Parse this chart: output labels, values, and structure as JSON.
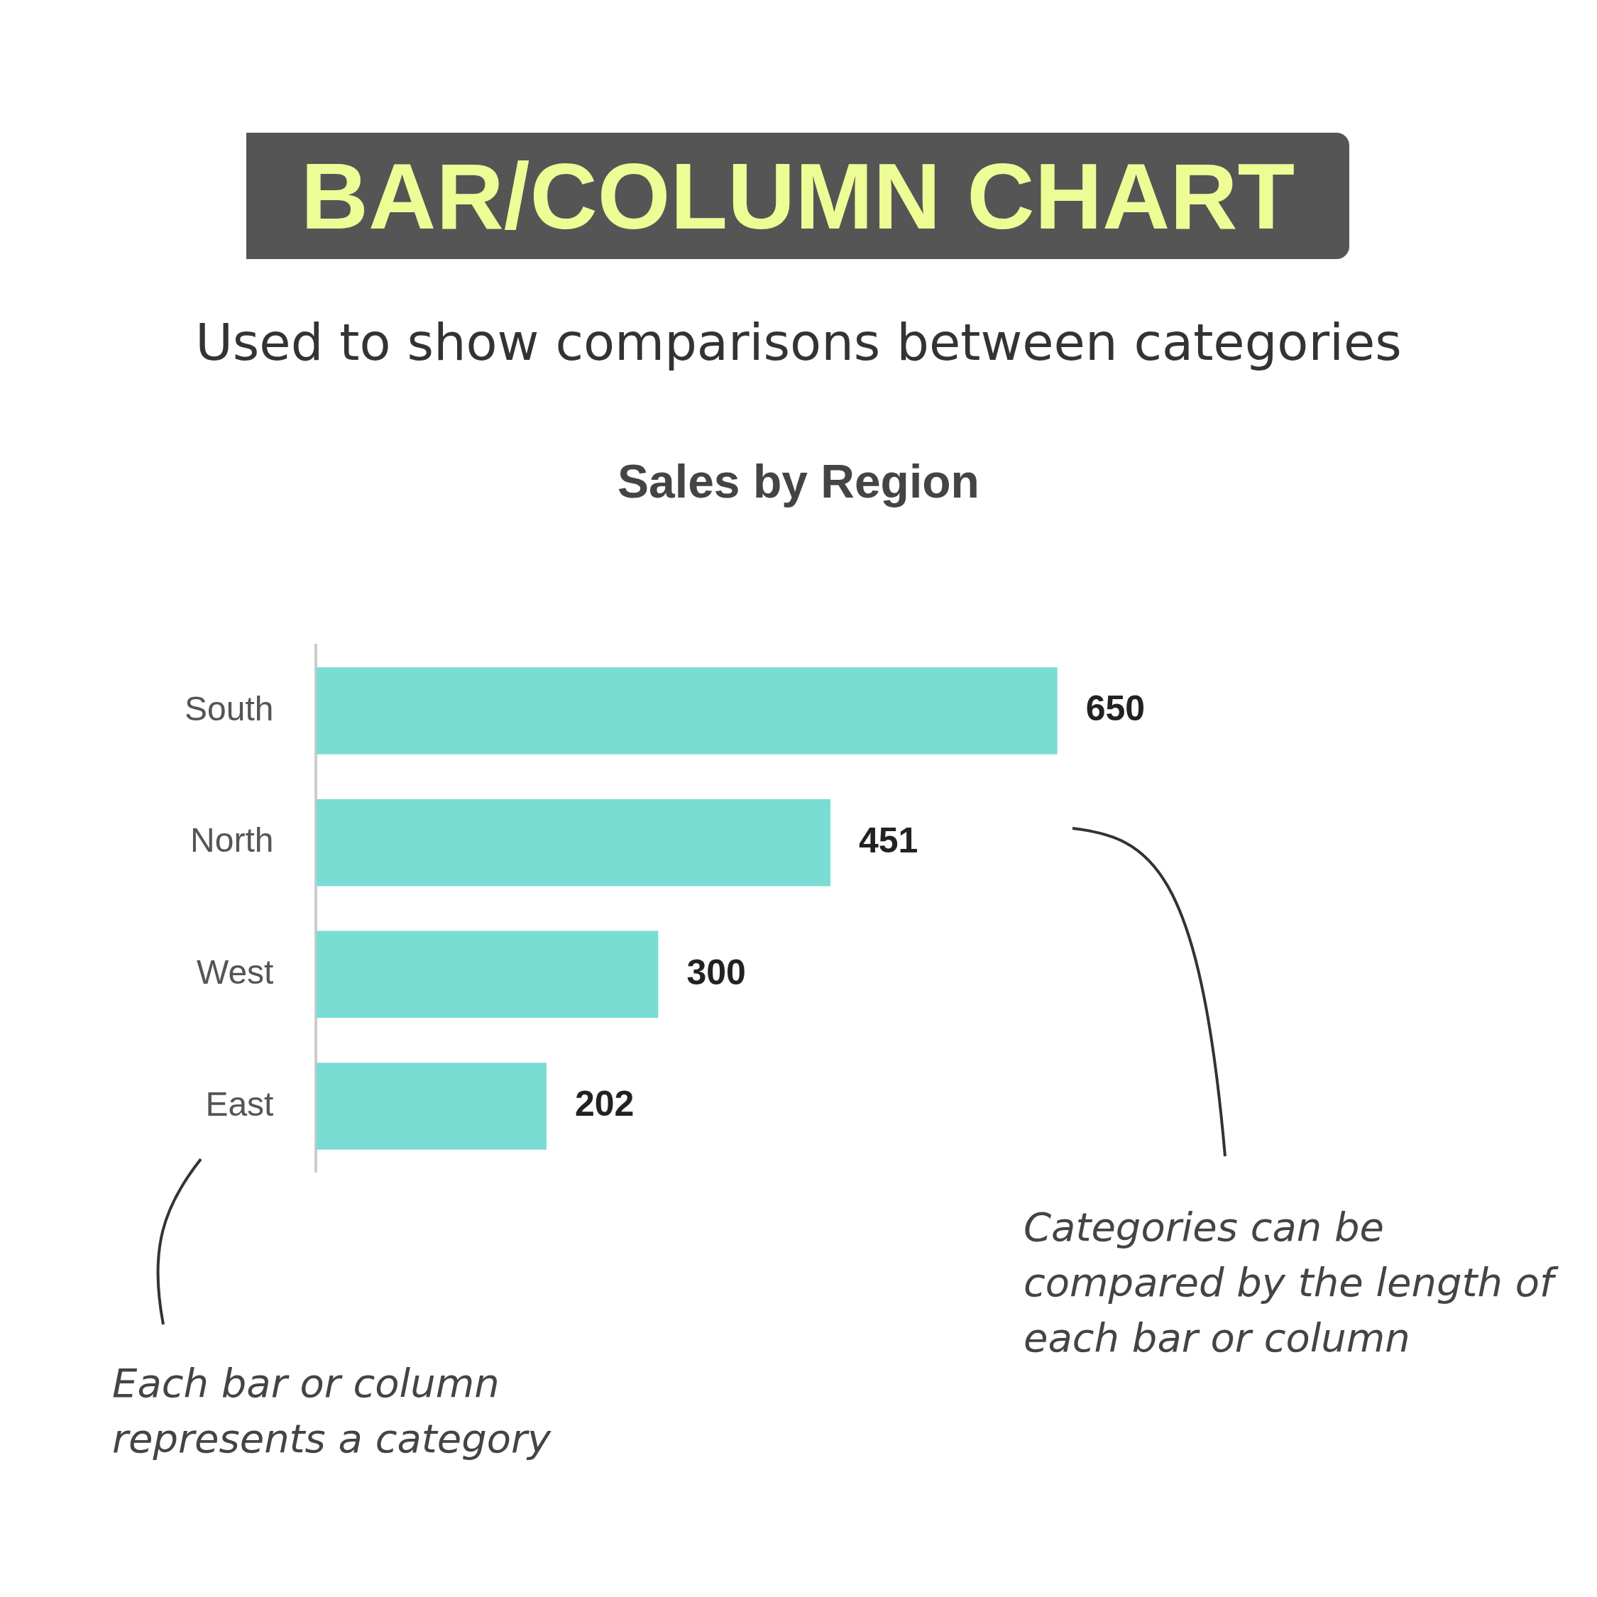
{
  "chart_data": {
    "type": "bar",
    "orientation": "horizontal",
    "title": "BAR/COLUMN CHART",
    "subtitle": "Used to show comparisons between categories",
    "categories": [
      "South",
      "North",
      "West",
      "East"
    ],
    "values": [
      650,
      451,
      300,
      202
    ],
    "color": "#79ddd4",
    "data_labels": true,
    "legend": false,
    "tick_labels": "y",
    "annotations": [
      "Sales by Region",
      "Categories can be compared by the length of each bar or column",
      "Each bar or column represents a category"
    ]
  }
}
